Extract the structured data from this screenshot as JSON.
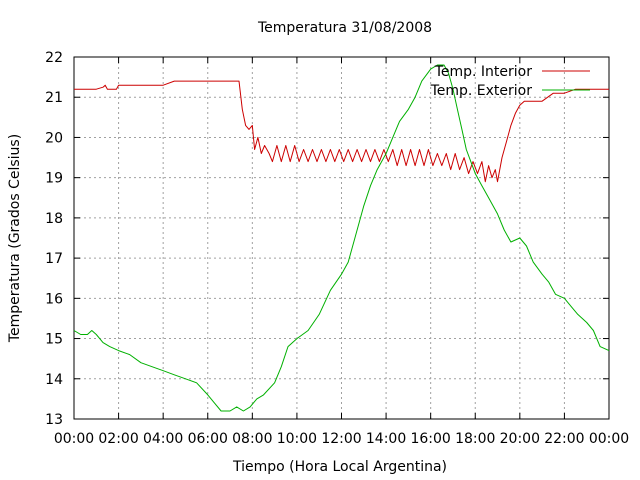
{
  "chart_data": {
    "type": "line",
    "title": "Temperatura 31/08/2008",
    "xlabel": "Tiempo (Hora Local Argentina)",
    "ylabel": "Temperatura (Grados Celsius)",
    "x_unit": "hours",
    "xlim": [
      0,
      24
    ],
    "ylim": [
      13,
      22
    ],
    "x_ticks": [
      0,
      2,
      4,
      6,
      8,
      10,
      12,
      14,
      16,
      18,
      20,
      22,
      24
    ],
    "x_tick_labels": [
      "00:00",
      "02:00",
      "04:00",
      "06:00",
      "08:00",
      "10:00",
      "12:00",
      "14:00",
      "16:00",
      "18:00",
      "20:00",
      "22:00",
      "00:00"
    ],
    "y_ticks": [
      13,
      14,
      15,
      16,
      17,
      18,
      19,
      20,
      21,
      22
    ],
    "y_tick_labels": [
      "13",
      "14",
      "15",
      "16",
      "17",
      "18",
      "19",
      "20",
      "21",
      "22"
    ],
    "grid": true,
    "legend_position": "top-right",
    "series": [
      {
        "name": "Temp. Interior",
        "color": "#cc0000",
        "x": [
          0.0,
          0.5,
          1.0,
          1.3,
          1.4,
          1.5,
          1.9,
          2.0,
          3.0,
          4.0,
          4.5,
          5.0,
          6.0,
          7.0,
          7.4,
          7.55,
          7.7,
          7.85,
          8.0,
          8.1,
          8.25,
          8.4,
          8.55,
          8.75,
          8.9,
          9.1,
          9.3,
          9.5,
          9.7,
          9.9,
          10.1,
          10.3,
          10.5,
          10.7,
          10.9,
          11.1,
          11.3,
          11.5,
          11.7,
          11.9,
          12.1,
          12.3,
          12.5,
          12.7,
          12.9,
          13.1,
          13.3,
          13.5,
          13.7,
          13.9,
          14.1,
          14.3,
          14.5,
          14.7,
          14.9,
          15.1,
          15.3,
          15.5,
          15.7,
          15.9,
          16.1,
          16.3,
          16.5,
          16.7,
          16.9,
          17.1,
          17.3,
          17.5,
          17.7,
          17.9,
          18.1,
          18.3,
          18.45,
          18.6,
          18.75,
          18.9,
          19.0,
          19.2,
          19.4,
          19.6,
          19.8,
          20.0,
          20.2,
          20.5,
          21.0,
          21.5,
          22.0,
          22.5,
          23.0,
          23.5,
          24.0
        ],
        "y": [
          21.2,
          21.2,
          21.2,
          21.25,
          21.3,
          21.2,
          21.2,
          21.3,
          21.3,
          21.3,
          21.4,
          21.4,
          21.4,
          21.4,
          21.4,
          20.7,
          20.3,
          20.2,
          20.3,
          19.7,
          20.0,
          19.6,
          19.8,
          19.6,
          19.4,
          19.8,
          19.4,
          19.8,
          19.4,
          19.8,
          19.4,
          19.7,
          19.4,
          19.7,
          19.4,
          19.7,
          19.4,
          19.7,
          19.4,
          19.7,
          19.4,
          19.7,
          19.4,
          19.7,
          19.4,
          19.7,
          19.4,
          19.7,
          19.4,
          19.7,
          19.4,
          19.7,
          19.3,
          19.7,
          19.3,
          19.7,
          19.3,
          19.7,
          19.3,
          19.7,
          19.3,
          19.6,
          19.3,
          19.6,
          19.2,
          19.6,
          19.2,
          19.5,
          19.1,
          19.4,
          19.1,
          19.4,
          18.9,
          19.3,
          19.0,
          19.2,
          18.9,
          19.5,
          19.9,
          20.3,
          20.6,
          20.8,
          20.9,
          20.9,
          20.9,
          21.1,
          21.1,
          21.2,
          21.2,
          21.2,
          21.2
        ]
      },
      {
        "name": "Temp. Exterior",
        "color": "#00b000",
        "x": [
          0.0,
          0.3,
          0.6,
          0.8,
          1.0,
          1.3,
          1.6,
          2.0,
          2.5,
          3.0,
          3.5,
          4.0,
          4.5,
          5.0,
          5.5,
          6.0,
          6.3,
          6.6,
          7.0,
          7.3,
          7.6,
          7.9,
          8.2,
          8.5,
          9.0,
          9.3,
          9.6,
          10.0,
          10.5,
          11.0,
          11.5,
          12.0,
          12.3,
          12.6,
          13.0,
          13.3,
          13.6,
          14.0,
          14.3,
          14.6,
          15.0,
          15.3,
          15.6,
          16.0,
          16.3,
          16.6,
          16.8,
          17.0,
          17.2,
          17.4,
          17.6,
          17.8,
          18.0,
          18.3,
          18.6,
          19.0,
          19.3,
          19.6,
          20.0,
          20.3,
          20.6,
          21.0,
          21.3,
          21.6,
          22.0,
          22.3,
          22.6,
          23.0,
          23.3,
          23.6,
          24.0
        ],
        "y": [
          15.2,
          15.1,
          15.1,
          15.2,
          15.1,
          14.9,
          14.8,
          14.7,
          14.6,
          14.4,
          14.3,
          14.2,
          14.1,
          14.0,
          13.9,
          13.6,
          13.4,
          13.2,
          13.2,
          13.3,
          13.2,
          13.3,
          13.5,
          13.6,
          13.9,
          14.3,
          14.8,
          15.0,
          15.2,
          15.6,
          16.2,
          16.6,
          16.9,
          17.5,
          18.3,
          18.8,
          19.2,
          19.6,
          20.0,
          20.4,
          20.7,
          21.0,
          21.4,
          21.7,
          21.8,
          21.8,
          21.6,
          21.2,
          20.7,
          20.2,
          19.7,
          19.4,
          19.1,
          18.8,
          18.5,
          18.1,
          17.7,
          17.4,
          17.5,
          17.3,
          16.9,
          16.6,
          16.4,
          16.1,
          16.0,
          15.8,
          15.6,
          15.4,
          15.2,
          14.8,
          14.7
        ]
      }
    ]
  }
}
